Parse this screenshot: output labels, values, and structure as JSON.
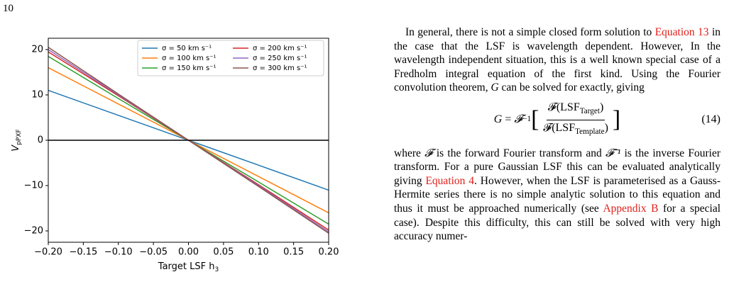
{
  "page_number": "10",
  "chart_data": {
    "type": "line",
    "x_label": "Target LSF h",
    "x_label_sub": "3",
    "y_label": "V",
    "y_label_sub": "pPXF",
    "x": [
      -0.2,
      -0.1,
      0,
      0.1,
      0.2
    ],
    "series": [
      {
        "name": "σ = 50 km s⁻¹",
        "color": "#1f77b4",
        "values": [
          11,
          5.5,
          0,
          -5.5,
          -11
        ]
      },
      {
        "name": "σ = 100 km s⁻¹",
        "color": "#ff7f0e",
        "values": [
          16,
          8,
          0,
          -8,
          -16
        ]
      },
      {
        "name": "σ = 150 km s⁻¹",
        "color": "#2ca02c",
        "values": [
          18.5,
          9.2,
          0,
          -9.2,
          -18.5
        ]
      },
      {
        "name": "σ = 200 km s⁻¹",
        "color": "#d62728",
        "values": [
          19.5,
          9.8,
          0,
          -9.8,
          -19.8
        ]
      },
      {
        "name": "σ = 250 km s⁻¹",
        "color": "#9467bd",
        "values": [
          20,
          10,
          0,
          -10,
          -20.2
        ]
      },
      {
        "name": "σ = 300 km s⁻¹",
        "color": "#8c564b",
        "values": [
          20.5,
          10.2,
          0,
          -10.2,
          -20.5
        ]
      }
    ],
    "hline": 0,
    "xlim": [
      -0.2,
      0.2
    ],
    "ylim": [
      -22.5,
      22.5
    ],
    "xticks": [
      {
        "value": -0.2,
        "label": "−0.20"
      },
      {
        "value": -0.15,
        "label": "−0.15"
      },
      {
        "value": -0.1,
        "label": "−0.10"
      },
      {
        "value": -0.05,
        "label": "−0.05"
      },
      {
        "value": 0,
        "label": "0.00"
      },
      0.05,
      {
        "value": 0.1,
        "label": "0.10"
      },
      0.15,
      {
        "value": 0.2,
        "label": "0.20"
      }
    ],
    "yticks": [
      {
        "value": -20,
        "label": "−20"
      },
      {
        "value": -10,
        "label": "−10"
      },
      0,
      10,
      20
    ],
    "legend": "upper right",
    "legend_columns": 2
  },
  "text": {
    "paragraph_1": [
      "In general, there is not a simple closed form solution to ",
      {
        "ref": "Equation 13"
      },
      " in the case that the LSF is wavelength dependent. However, In the wavelength independent situation, this is a well known special case of a Fredholm integral equation of the first kind. Using the Fourier convolution theorem, ",
      {
        "em": "G"
      },
      " can be solved for exactly, giving"
    ],
    "equation": {
      "lhs": "G",
      "equals": " = ",
      "operator": "𝓕",
      "inverse": "−1",
      "numerator": "𝓕(LSF",
      "numerator_sub": "Target",
      "denominator": "𝓕(LSF",
      "denominator_sub": "Template",
      "close": ")",
      "number": "(14)"
    },
    "paragraph_2": [
      "where ",
      {
        "em": "𝓕"
      },
      " is the forward Fourier transform and ",
      {
        "em": "𝓕⁻¹"
      },
      " is the inverse Fourier transform. For a pure Gaussian LSF this can be evaluated analytically giving ",
      {
        "ref": "Equation 4"
      },
      ". However, when the LSF is parameterised as a Gauss-Hermite series there is no simple analytic solution to this equation and thus it must be approached numerically (see ",
      {
        "ref": "Appendix B"
      },
      " for a special case). Despite this difficulty, this can still be solved with very high accuracy numer-"
    ]
  }
}
